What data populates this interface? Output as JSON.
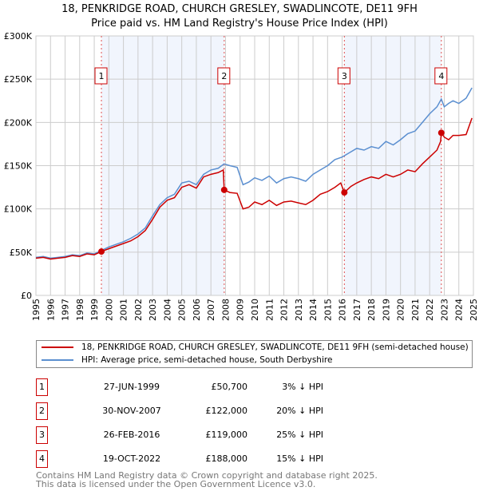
{
  "title": "18, PENKRIDGE ROAD, CHURCH GRESLEY, SWADLINCOTE, DE11 9FH",
  "subtitle": "Price paid vs. HM Land Registry's House Price Index (HPI)",
  "chart_data": {
    "type": "line",
    "xlim": [
      1995,
      2025
    ],
    "ylim": [
      0,
      300000
    ],
    "y_ticks": [
      {
        "v": 0,
        "label": "£0"
      },
      {
        "v": 50000,
        "label": "£50K"
      },
      {
        "v": 100000,
        "label": "£100K"
      },
      {
        "v": 150000,
        "label": "£150K"
      },
      {
        "v": 200000,
        "label": "£200K"
      },
      {
        "v": 250000,
        "label": "£250K"
      },
      {
        "v": 300000,
        "label": "£300K"
      }
    ],
    "x_ticks": [
      "1995",
      "1996",
      "1997",
      "1998",
      "1999",
      "2000",
      "2001",
      "2002",
      "2003",
      "2004",
      "2005",
      "2006",
      "2007",
      "2008",
      "2009",
      "2010",
      "2011",
      "2012",
      "2013",
      "2014",
      "2015",
      "2016",
      "2017",
      "2018",
      "2019",
      "2020",
      "2021",
      "2022",
      "2023",
      "2024",
      "2025"
    ],
    "grid": true,
    "series": [
      {
        "name": "18, PENKRIDGE ROAD, CHURCH GRESLEY, SWADLINCOTE, DE11 9FH (semi-detached house)",
        "color": "#cc0000",
        "x": [
          1995,
          1995.5,
          1996,
          1996.5,
          1997,
          1997.5,
          1998,
          1998.5,
          1999,
          1999.49,
          2000,
          2000.5,
          2001,
          2001.5,
          2002,
          2002.5,
          2003,
          2003.5,
          2004,
          2004.5,
          2005,
          2005.5,
          2006,
          2006.5,
          2007,
          2007.5,
          2007.85,
          2007.91,
          2008.3,
          2008.8,
          2009.2,
          2009.6,
          2010,
          2010.5,
          2011,
          2011.5,
          2012,
          2012.5,
          2013,
          2013.5,
          2014,
          2014.5,
          2015,
          2015.5,
          2015.9,
          2016.15,
          2016.6,
          2017,
          2017.5,
          2018,
          2018.5,
          2019,
          2019.5,
          2020,
          2020.5,
          2021,
          2021.5,
          2022,
          2022.5,
          2022.75,
          2022.8,
          2023,
          2023.3,
          2023.6,
          2024,
          2024.5,
          2024.9
        ],
        "y": [
          43000,
          44000,
          42000,
          43000,
          44000,
          46000,
          45000,
          48000,
          47000,
          50700,
          54000,
          57000,
          60000,
          63000,
          68000,
          75000,
          88000,
          102000,
          110000,
          113000,
          125000,
          128000,
          124000,
          137000,
          140000,
          142000,
          145000,
          122000,
          119000,
          118000,
          100000,
          102000,
          108000,
          105000,
          110000,
          104000,
          108000,
          109000,
          107000,
          105000,
          110000,
          117000,
          120000,
          125000,
          130000,
          119000,
          126000,
          130000,
          134000,
          137000,
          135000,
          140000,
          137000,
          140000,
          145000,
          143000,
          152000,
          160000,
          168000,
          178000,
          188000,
          183000,
          180000,
          185000,
          185000,
          186000,
          205000
        ]
      },
      {
        "name": "HPI: Average price, semi-detached house, South Derbyshire",
        "color": "#5b8fd0",
        "x": [
          1995,
          1995.5,
          1996,
          1996.5,
          1997,
          1997.5,
          1998,
          1998.5,
          1999,
          1999.49,
          2000,
          2000.5,
          2001,
          2001.5,
          2002,
          2002.5,
          2003,
          2003.5,
          2004,
          2004.5,
          2005,
          2005.5,
          2006,
          2006.5,
          2007,
          2007.5,
          2007.9,
          2008.3,
          2008.8,
          2009.2,
          2009.6,
          2010,
          2010.5,
          2011,
          2011.5,
          2012,
          2012.5,
          2013,
          2013.5,
          2014,
          2014.5,
          2015,
          2015.5,
          2016,
          2016.5,
          2017,
          2017.5,
          2018,
          2018.5,
          2019,
          2019.5,
          2020,
          2020.5,
          2021,
          2021.5,
          2022,
          2022.5,
          2022.8,
          2023,
          2023.3,
          2023.6,
          2024,
          2024.5,
          2024.9
        ],
        "y": [
          44000,
          45000,
          43000,
          44000,
          45000,
          47000,
          46000,
          49000,
          48000,
          52000,
          56000,
          59000,
          62000,
          66000,
          71000,
          78000,
          92000,
          105000,
          113000,
          117000,
          130000,
          132000,
          128000,
          140000,
          145000,
          147000,
          152000,
          150000,
          148000,
          128000,
          131000,
          136000,
          133000,
          138000,
          130000,
          135000,
          137000,
          135000,
          132000,
          140000,
          145000,
          150000,
          157000,
          160000,
          165000,
          170000,
          168000,
          172000,
          170000,
          178000,
          174000,
          180000,
          187000,
          190000,
          200000,
          210000,
          218000,
          227000,
          218000,
          222000,
          225000,
          222000,
          228000,
          240000
        ]
      }
    ],
    "sales": [
      {
        "n": "1",
        "x": 1999.49,
        "value": 50700,
        "date": "27-JUN-1999",
        "price": "£50,700",
        "pct": "3% ↓ HPI"
      },
      {
        "n": "2",
        "x": 2007.91,
        "value": 122000,
        "date": "30-NOV-2007",
        "price": "£122,000",
        "pct": "20% ↓ HPI"
      },
      {
        "n": "3",
        "x": 2016.15,
        "value": 119000,
        "date": "26-FEB-2016",
        "price": "£119,000",
        "pct": "25% ↓ HPI"
      },
      {
        "n": "4",
        "x": 2022.8,
        "value": 188000,
        "date": "19-OCT-2022",
        "price": "£188,000",
        "pct": "15% ↓ HPI"
      }
    ],
    "shaded_ranges": [
      [
        1999.49,
        2007.91
      ],
      [
        2016.15,
        2022.8
      ]
    ]
  },
  "footer": [
    "Contains HM Land Registry data © Crown copyright and database right 2025.",
    "This data is licensed under the Open Government Licence v3.0."
  ]
}
